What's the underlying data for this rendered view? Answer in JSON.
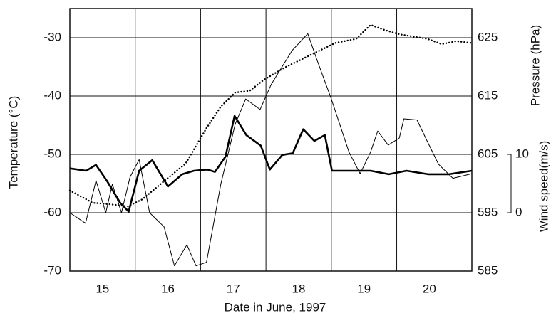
{
  "chart_data": {
    "type": "line",
    "xlabel": "Date in June, 1997",
    "ylabel": "Temperature (°C)",
    "y2label": "Pressure (hPa)",
    "y3label": "Wind speed(m/s)",
    "xlim": [
      14.5,
      20.65
    ],
    "xticks": [
      15,
      16,
      17,
      18,
      19,
      20
    ],
    "xgrid": [
      15.5,
      16.5,
      17.5,
      18.5,
      19.5
    ],
    "ylim": [
      -70,
      -25
    ],
    "yticks": [
      -70,
      -60,
      -50,
      -40,
      -30
    ],
    "y2lim": [
      585,
      630
    ],
    "y2ticks": [
      585,
      595,
      605,
      615,
      625
    ],
    "y3lim": [
      -10,
      35
    ],
    "y3ticks": [
      0,
      10
    ],
    "grid": true,
    "series": [
      {
        "axis": "y",
        "style": "thick",
        "color": "#000000",
        "x": [
          14.5,
          14.75,
          14.9,
          15.07,
          15.27,
          15.4,
          15.56,
          15.76,
          16.0,
          16.22,
          16.4,
          16.6,
          16.72,
          16.88,
          17.02,
          17.2,
          17.42,
          17.56,
          17.75,
          17.91,
          18.07,
          18.24,
          18.4,
          18.51,
          18.78,
          19.1,
          19.38,
          19.65,
          19.98,
          20.3,
          20.65
        ],
        "values": [
          -52.4,
          -52.8,
          -51.8,
          -54.6,
          -58.3,
          -59.8,
          -52.8,
          -51,
          -55.5,
          -53.4,
          -52.8,
          -52.6,
          -53,
          -50.4,
          -43.4,
          -46.7,
          -48.5,
          -52.6,
          -50.1,
          -49.8,
          -45.7,
          -47.7,
          -46.7,
          -52.8,
          -52.8,
          -52.8,
          -53.4,
          -52.8,
          -53.4,
          -53.4,
          -52.8
        ]
      },
      {
        "axis": "y3",
        "style": "thin",
        "color": "#000000",
        "x": [
          14.5,
          14.74,
          14.9,
          15.05,
          15.15,
          15.29,
          15.42,
          15.56,
          15.72,
          15.94,
          16.1,
          16.29,
          16.43,
          16.59,
          16.81,
          17.03,
          17.19,
          17.41,
          17.58,
          17.9,
          18.14,
          18.28,
          18.5,
          18.77,
          18.94,
          19.1,
          19.21,
          19.37,
          19.54,
          19.61,
          19.81,
          19.97,
          20.14,
          20.36,
          20.65
        ],
        "values": [
          0,
          -1.8,
          5.5,
          0,
          4.9,
          0,
          6.1,
          9.1,
          0,
          -2.4,
          -9.1,
          -5.5,
          -9.1,
          -8.5,
          4.9,
          15.2,
          19.5,
          17.7,
          22.0,
          27.8,
          30.7,
          26.2,
          19.5,
          10.4,
          6.7,
          10.4,
          14.0,
          11.6,
          12.8,
          16.1,
          15.9,
          12.2,
          8.3,
          5.9,
          6.7
        ]
      },
      {
        "axis": "y2",
        "style": "dotted",
        "color": "#000000",
        "x": [
          14.5,
          14.85,
          15.07,
          15.39,
          15.61,
          15.94,
          16.27,
          16.59,
          16.81,
          17.03,
          17.25,
          17.47,
          17.79,
          18.23,
          18.56,
          18.88,
          19.1,
          19.32,
          19.54,
          19.97,
          20.19,
          20.41,
          20.65
        ],
        "values": [
          598.8,
          596.7,
          596.5,
          596.1,
          597.3,
          600.4,
          603.4,
          609.5,
          613.2,
          615.6,
          615.9,
          617.8,
          619.9,
          622.3,
          624.1,
          624.8,
          627.2,
          626.3,
          625.6,
          624.8,
          623.9,
          624.4,
          624.1
        ]
      }
    ]
  }
}
